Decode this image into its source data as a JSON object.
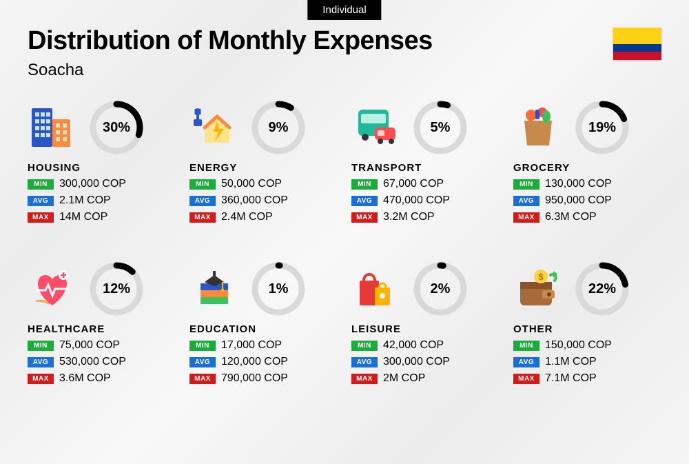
{
  "badge": "Individual",
  "title": "Distribution of Monthly Expenses",
  "subtitle": "Soacha",
  "flag": {
    "country": "Colombia",
    "colors": [
      "#FCD116",
      "#003893",
      "#CE1126"
    ]
  },
  "labels": {
    "min": "MIN",
    "avg": "AVG",
    "max": "MAX"
  },
  "tag_colors": {
    "min": "#1aad3b",
    "avg": "#1a6fd6",
    "max": "#d61a1a"
  },
  "donut": {
    "ring_bg": "#d9d9d9",
    "ring_fg": "#000000",
    "stroke_width": 9,
    "radius": 34
  },
  "categories": [
    {
      "key": "housing",
      "name": "HOUSING",
      "pct": 30,
      "min": "300,000 COP",
      "avg": "2.1M COP",
      "max": "14M COP",
      "icon": "building-icon"
    },
    {
      "key": "energy",
      "name": "ENERGY",
      "pct": 9,
      "min": "50,000 COP",
      "avg": "360,000 COP",
      "max": "2.4M COP",
      "icon": "energy-icon"
    },
    {
      "key": "transport",
      "name": "TRANSPORT",
      "pct": 5,
      "min": "67,000 COP",
      "avg": "470,000 COP",
      "max": "3.2M COP",
      "icon": "bus-icon"
    },
    {
      "key": "grocery",
      "name": "GROCERY",
      "pct": 19,
      "min": "130,000 COP",
      "avg": "950,000 COP",
      "max": "6.3M COP",
      "icon": "grocery-icon"
    },
    {
      "key": "healthcare",
      "name": "HEALTHCARE",
      "pct": 12,
      "min": "75,000 COP",
      "avg": "530,000 COP",
      "max": "3.6M COP",
      "icon": "healthcare-icon"
    },
    {
      "key": "education",
      "name": "EDUCATION",
      "pct": 1,
      "min": "17,000 COP",
      "avg": "120,000 COP",
      "max": "790,000 COP",
      "icon": "education-icon"
    },
    {
      "key": "leisure",
      "name": "LEISURE",
      "pct": 2,
      "min": "42,000 COP",
      "avg": "300,000 COP",
      "max": "2M COP",
      "icon": "leisure-icon"
    },
    {
      "key": "other",
      "name": "OTHER",
      "pct": 22,
      "min": "150,000 COP",
      "avg": "1.1M COP",
      "max": "7.1M COP",
      "icon": "wallet-icon"
    }
  ]
}
